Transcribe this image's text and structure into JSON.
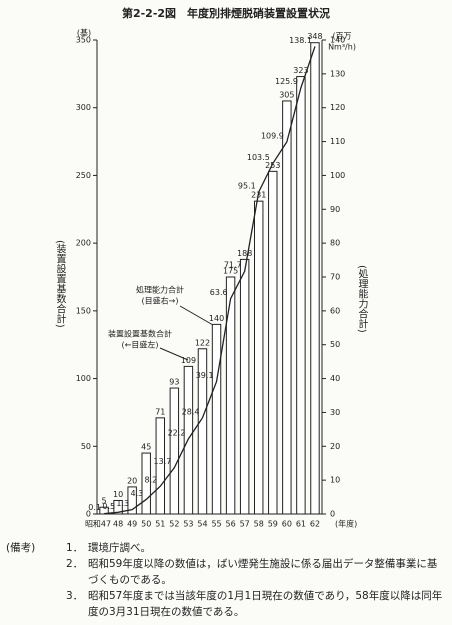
{
  "chart_data": {
    "type": "bar",
    "title": "第2-2-2図　年度別排煙脱硝装置設置状況",
    "y_unit": "(基)",
    "y_label": "(装置設置基数合計)",
    "y2_unit": [
      "(百万",
      "Nm³/h)"
    ],
    "y2_label": "(処理能力合計)",
    "x_unit": "(年度)",
    "categories": [
      "昭和47",
      "48",
      "49",
      "50",
      "51",
      "52",
      "53",
      "54",
      "55",
      "56",
      "57",
      "58",
      "59",
      "60",
      "61",
      "62"
    ],
    "series": [
      {
        "name": "装置設置基数合計",
        "note": "(←目盛左)",
        "type": "bar",
        "color": "#222222",
        "values": [
          5,
          10,
          20,
          45,
          71,
          93,
          109,
          122,
          140,
          175,
          188,
          231,
          253,
          305,
          323,
          348
        ]
      },
      {
        "name": "処理能力合計",
        "note": "(目盛右→)",
        "type": "line",
        "axis": "y2",
        "color": "#222222",
        "values": [
          0.1,
          0.5,
          1.3,
          4.3,
          8.2,
          13.7,
          22.2,
          28.4,
          39.1,
          63.6,
          71.7,
          95.1,
          103.5,
          109.9,
          125.9,
          138.1
        ]
      }
    ],
    "ylim": [
      0,
      350
    ],
    "yticks": [
      0,
      50,
      100,
      150,
      200,
      250,
      300,
      350
    ],
    "y2lim": [
      0,
      140
    ],
    "y2ticks": [
      0,
      10,
      20,
      30,
      40,
      50,
      60,
      70,
      80,
      90,
      100,
      110,
      120,
      130,
      140
    ]
  },
  "notes": {
    "heading": "(備考)",
    "items": [
      {
        "num": "1．",
        "text": "環境庁調べ。"
      },
      {
        "num": "2．",
        "text": "昭和59年度以降の数値は，ばい煙発生施設に係る届出データ整備事業に基づくものである。"
      },
      {
        "num": "3．",
        "text": "昭和57年度までは当該年度の1月1日現在の数値であり，58年度以降は同年度の3月31日現在の数値である。"
      }
    ]
  }
}
